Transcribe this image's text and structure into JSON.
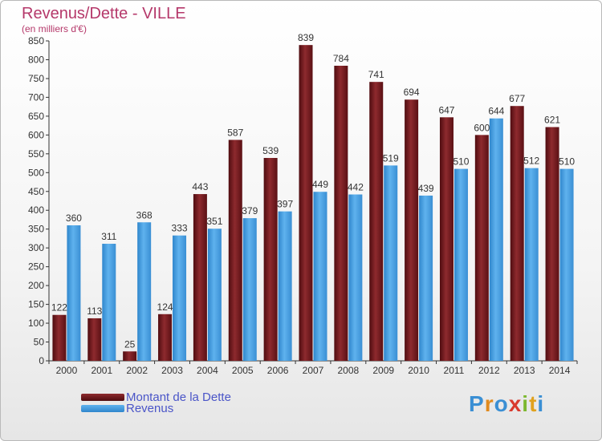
{
  "header": {
    "title": "Revenus/Dette - VILLE",
    "subtitle": "(en milliers d'€)"
  },
  "legend": {
    "debt_label": "Montant de la Dette",
    "revenue_label": "Revenus"
  },
  "logo": {
    "text": "Proxiti"
  },
  "colors": {
    "debt": "#7a1e22",
    "revenue": "#4a9fe0",
    "title": "#b5386a",
    "legend_text": "#4a55c8"
  },
  "chart_data": {
    "type": "bar",
    "title": "Revenus/Dette - VILLE",
    "subtitle": "(en milliers d'€)",
    "categories": [
      "2000",
      "2001",
      "2002",
      "2003",
      "2004",
      "2005",
      "2006",
      "2007",
      "2008",
      "2009",
      "2010",
      "2011",
      "2012",
      "2013",
      "2014"
    ],
    "series": [
      {
        "name": "Montant de la Dette",
        "values": [
          122,
          113,
          25,
          124,
          443,
          587,
          539,
          839,
          784,
          741,
          694,
          647,
          600,
          677,
          621
        ]
      },
      {
        "name": "Revenus",
        "values": [
          360,
          311,
          368,
          333,
          351,
          379,
          397,
          449,
          442,
          519,
          439,
          510,
          644,
          512,
          510
        ]
      }
    ],
    "ylim": [
      0,
      850
    ],
    "ytick_step": 50,
    "grid": false,
    "legend_position": "bottom-left"
  }
}
